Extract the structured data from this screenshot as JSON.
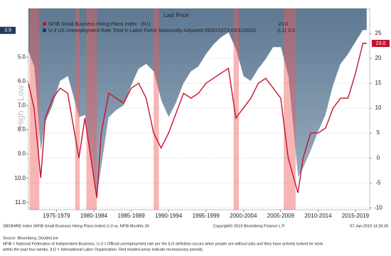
{
  "chart_data": {
    "type": "line",
    "legend_header": "Last Price",
    "y_axis_label": "High = Low",
    "xlim": [
      1973.75,
      2019.4
    ],
    "xticks": [
      {
        "value": 1977.5,
        "label": "1975-1979"
      },
      {
        "value": 1982.5,
        "label": "1980-1984"
      },
      {
        "value": 1987.5,
        "label": "1985-1989"
      },
      {
        "value": 1992.5,
        "label": "1990-1994"
      },
      {
        "value": 1997.5,
        "label": "1995-1999"
      },
      {
        "value": 2002.5,
        "label": "2000-2004"
      },
      {
        "value": 2007.5,
        "label": "2005-2009"
      },
      {
        "value": 2012.5,
        "label": "2010-2014"
      },
      {
        "value": 2017.5,
        "label": "2015-2019"
      }
    ],
    "ylim": [
      11.3,
      3.0
    ],
    "yticks": [
      {
        "value": 5,
        "label": "5.0"
      },
      {
        "value": 6,
        "label": "6.0"
      },
      {
        "value": 7,
        "label": "7.0"
      },
      {
        "value": 8,
        "label": "8.0"
      },
      {
        "value": 9,
        "label": "9.0"
      },
      {
        "value": 10,
        "label": "10.0"
      },
      {
        "value": 11,
        "label": "11.0"
      }
    ],
    "y2lim": [
      -10.4,
      30
    ],
    "y2ticks": [
      25,
      20,
      15,
      10,
      5,
      0,
      -5,
      -10
    ],
    "grid": true,
    "recessions": [
      [
        1973.9,
        1975.2
      ],
      [
        1980.0,
        1980.6
      ],
      [
        1981.5,
        1982.9
      ],
      [
        1990.5,
        1991.2
      ],
      [
        2001.2,
        2001.9
      ],
      [
        2007.9,
        2009.5
      ]
    ],
    "x": [
      1973.75,
      1974.5,
      1975.4,
      1976,
      1977,
      1978,
      1979,
      1980.5,
      1981.3,
      1982.9,
      1983.5,
      1984.5,
      1985.5,
      1986.5,
      1987.5,
      1988.5,
      1989.5,
      1990.5,
      1991.5,
      1992.5,
      1993.5,
      1994.5,
      1995.5,
      1996.5,
      1997.5,
      1998.5,
      1999.5,
      2000.5,
      2001.5,
      2002.5,
      2003.5,
      2004.5,
      2005.5,
      2006.5,
      2007.5,
      2008.5,
      2009.8,
      2010.5,
      2011.5,
      2012.5,
      2013.5,
      2014.5,
      2015.5,
      2016.5,
      2017.5,
      2018.5,
      2019.0
    ],
    "series": [
      {
        "name": "NFIB Small Business Hiring Plans Index",
        "axis_tag": "(R1)",
        "last_label": "23.0",
        "axis": "y2",
        "color": "#c8102e",
        "values": [
          15,
          10,
          -4,
          8,
          12,
          14,
          13,
          0,
          8,
          -8,
          5,
          13,
          12,
          11,
          14,
          15,
          12,
          5,
          2,
          5,
          9,
          13,
          12,
          13,
          15,
          16,
          17,
          18,
          8,
          10,
          12,
          15,
          16,
          14,
          12,
          0,
          -7,
          0,
          5,
          5,
          6,
          10,
          12,
          12,
          17,
          23,
          23
        ]
      },
      {
        "name": "U-3 US Unemployment Rate Total in Labor Force Seasonally Adjusted 09/30/1973-03/31/2020",
        "axis_tag": "(L1)",
        "last_label": "3.9",
        "axis": "y",
        "color": "#6f8aa3",
        "values": [
          4.8,
          5.4,
          9.0,
          7.7,
          7.0,
          6.0,
          5.8,
          7.5,
          7.4,
          10.8,
          9.6,
          7.5,
          7.2,
          7.0,
          6.2,
          5.5,
          5.3,
          5.6,
          6.8,
          7.5,
          6.9,
          6.1,
          5.6,
          5.4,
          4.9,
          4.5,
          4.2,
          4.0,
          4.7,
          5.8,
          6.0,
          5.5,
          5.1,
          4.6,
          4.6,
          5.8,
          10.0,
          9.6,
          8.9,
          8.1,
          7.4,
          6.2,
          5.3,
          4.9,
          4.4,
          3.9,
          3.9
        ]
      }
    ],
    "footer_left": "SBOIHIRE Index (NFIB Small Business Hiring Plans Index) U-3 vs. NFIB  Monthly 30",
    "footer_center": "Copyright© 2019 Bloomberg Finance L.P.",
    "footer_right": "07-Jan-2019 14:28:39",
    "source": "Source: Bloomberg, DoubleLine",
    "note_1": "NFIB = National Federation of Independent Business. U-3 = Official unemployment rate per the ILO definition occurs when people are without jobs and they have actively looked for work",
    "note_2": "within the past four weeks. ILO = International Labor Organization. Red shaded areas indicate recessionary periods."
  }
}
